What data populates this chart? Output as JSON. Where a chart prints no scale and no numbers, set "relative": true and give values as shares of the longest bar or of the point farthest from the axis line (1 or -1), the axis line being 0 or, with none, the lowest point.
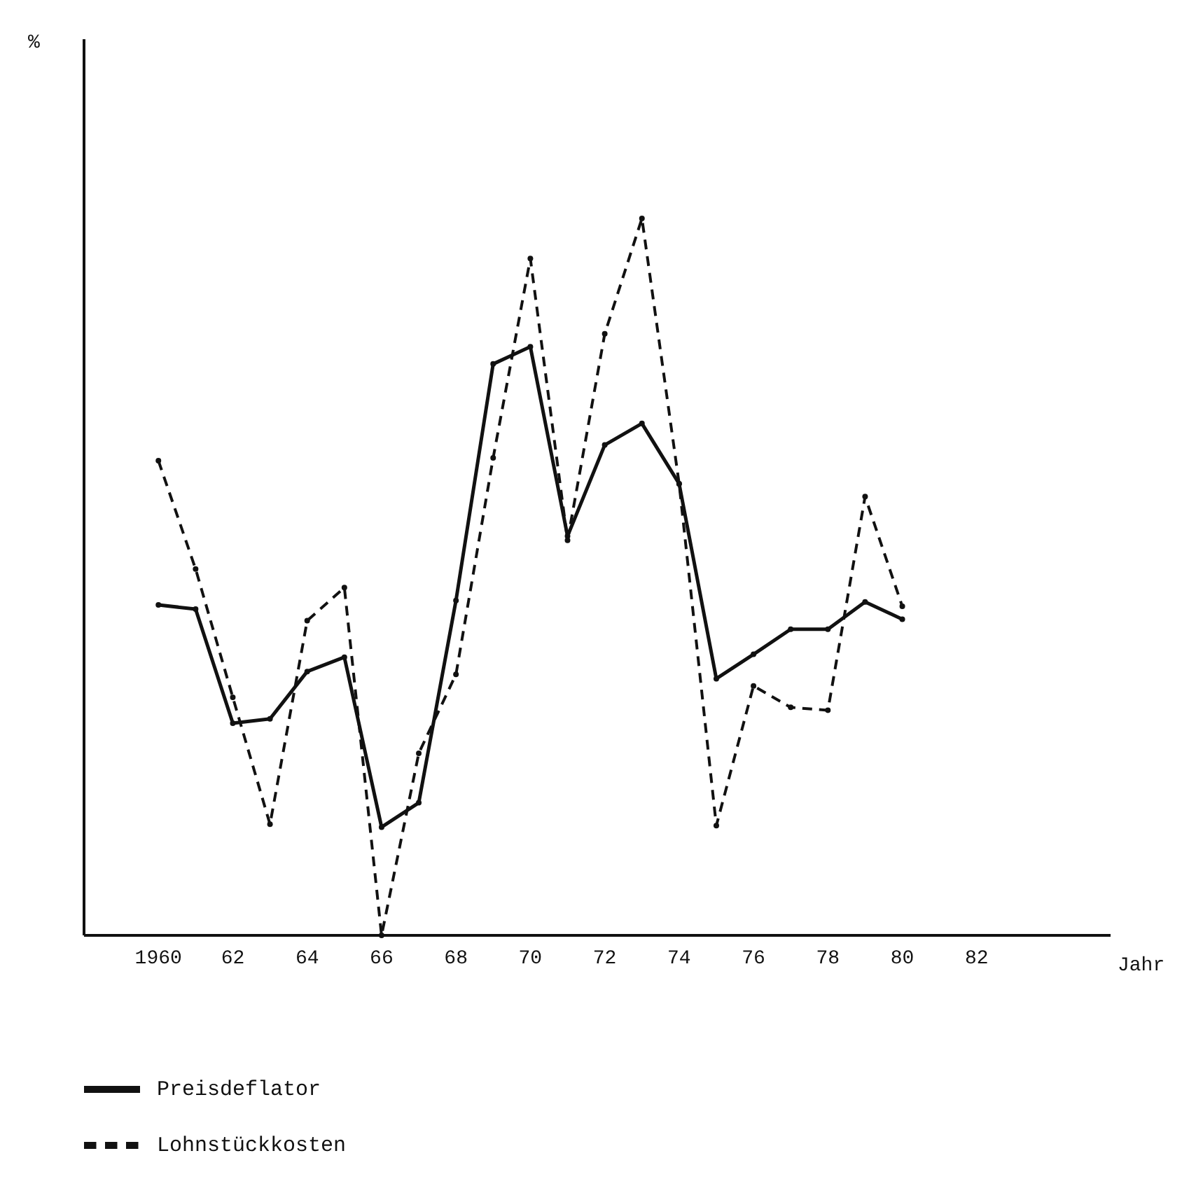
{
  "chart_data": {
    "type": "line",
    "relative": true,
    "annotations": [
      "%"
    ],
    "xlabel": "Jahr",
    "x": [
      1960,
      1961,
      1962,
      1963,
      1964,
      1965,
      1966,
      1967,
      1968,
      1969,
      1970,
      1971,
      1972,
      1973,
      1974,
      1975,
      1976,
      1977,
      1978,
      1979,
      1980
    ],
    "xlim": [
      1958,
      1985.6
    ],
    "xticks": [
      1960,
      {
        "value": 1962,
        "label": "62"
      },
      {
        "value": 1964,
        "label": "64"
      },
      {
        "value": 1966,
        "label": "66"
      },
      {
        "value": 1968,
        "label": "68"
      },
      {
        "value": 1970,
        "label": "70"
      },
      {
        "value": 1972,
        "label": "72"
      },
      {
        "value": 1974,
        "label": "74"
      },
      {
        "value": 1976,
        "label": "76"
      },
      {
        "value": 1978,
        "label": "78"
      },
      {
        "value": 1980,
        "label": "80"
      },
      {
        "value": 1982,
        "label": "82"
      }
    ],
    "tick_labels": "x",
    "grid": false,
    "legend": "bottom",
    "marker": "circle",
    "series": [
      {
        "name": "Preisdeflator",
        "color": "#111111",
        "line_style": "solid",
        "values": [
          0.461,
          0.455,
          0.296,
          0.302,
          0.368,
          0.388,
          0.151,
          0.185,
          0.467,
          0.797,
          0.821,
          0.557,
          0.684,
          0.714,
          0.63,
          0.358,
          0.392,
          0.427,
          0.427,
          0.465,
          0.441
        ]
      },
      {
        "name": "Lohnstückkosten",
        "color": "#111111",
        "line_style": "dashed",
        "values": [
          0.662,
          0.511,
          0.332,
          0.155,
          0.439,
          0.485,
          0,
          0.254,
          0.364,
          0.666,
          0.944,
          0.551,
          0.839,
          1,
          0.63,
          0.153,
          0.348,
          0.318,
          0.314,
          0.612,
          0.459
        ]
      }
    ]
  }
}
